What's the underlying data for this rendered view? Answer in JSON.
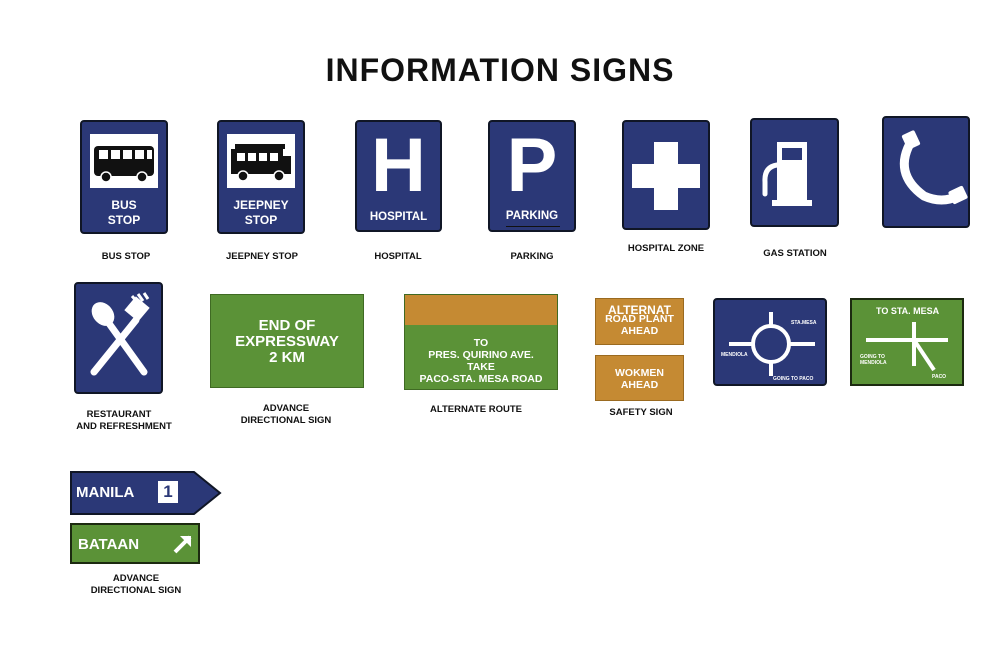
{
  "title": "INFORMATION SIGNS",
  "signs": {
    "bus_stop": {
      "text": [
        "BUS",
        "STOP"
      ],
      "caption": "BUS STOP"
    },
    "jeepney_stop": {
      "text": [
        "JEEPNEY",
        "STOP"
      ],
      "caption": "JEEPNEY STOP"
    },
    "hospital": {
      "letter": "H",
      "text": "HOSPITAL",
      "caption": "HOSPITAL"
    },
    "parking": {
      "letter": "P",
      "text": "PARKING",
      "caption": "PARKING"
    },
    "hospital_zone": {
      "caption": "HOSPITAL ZONE"
    },
    "gas_station": {
      "caption": "GAS STATION"
    },
    "telephone": {},
    "restaurant": {
      "caption": [
        "RESTAURANT",
        "AND REFRESHMENT"
      ]
    },
    "expressway": {
      "text": [
        "END OF",
        "EXPRESSWAY",
        "2 KM"
      ],
      "caption": [
        "ADVANCE",
        "DIRECTIONAL SIGN"
      ]
    },
    "alternate_route": {
      "text": [
        "TO",
        "PRES. QUIRINO AVE.",
        "TAKE",
        "PACO-STA. MESA ROAD"
      ],
      "caption": "ALTERNATE ROUTE"
    },
    "safety": {
      "top_text": [
        "ALTERNAT",
        "ROAD PLANT",
        "AHEAD"
      ],
      "bottom_text": [
        "WOKMEN",
        "AHEAD"
      ],
      "caption": "SAFETY  SIGN"
    },
    "rotonda": {
      "labels": [
        "STA.MESA",
        "MENDIOLA",
        "GOING TO PACO"
      ]
    },
    "junction": {
      "labels": [
        "TO STA. MESA",
        "GOING TO",
        "MENDIOLA",
        "PACO"
      ]
    },
    "manila": {
      "text": "MANILA",
      "route": "1"
    },
    "bataan": {
      "text": "BATAAN"
    },
    "route_caption": [
      "ADVANCE",
      "DIRECTIONAL SIGN"
    ]
  },
  "colors": {
    "blue": "#2b3877",
    "green": "#5b9237",
    "orange": "#c58a33"
  }
}
